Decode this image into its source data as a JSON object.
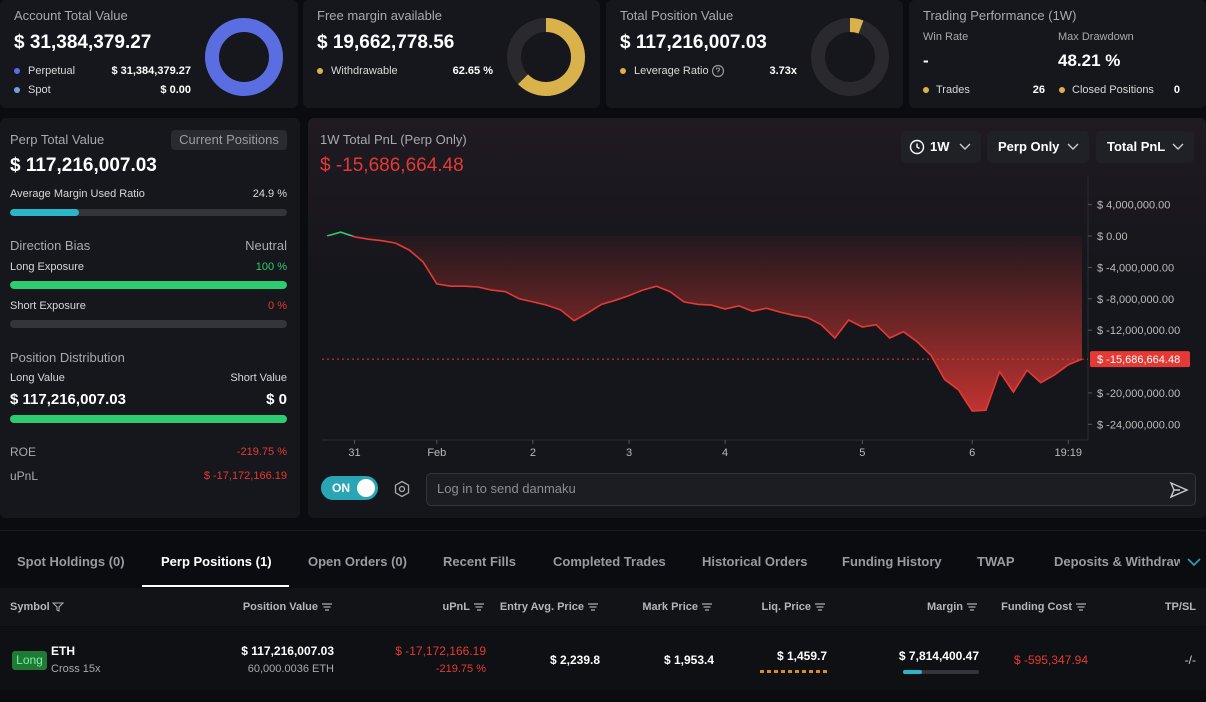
{
  "summary_cards": [
    {
      "title": "Account Total Value",
      "amount": "$ 31,384,379.27",
      "rows": [
        {
          "label": "Perpetual",
          "value": "$ 31,384,379.27",
          "color": "#5b6ee1"
        },
        {
          "label": "Spot",
          "value": "$ 0.00",
          "color": "#6fa3d8"
        }
      ],
      "donut": [
        31384379.27,
        0
      ]
    },
    {
      "title": "Free margin available",
      "amount": "$ 19,662,778.56",
      "rows": [
        {
          "label": "Withdrawable",
          "value": "62.65 %",
          "color": "#d9b24c"
        }
      ],
      "donut_percent": 62.65
    },
    {
      "title": "Total Position Value",
      "amount": "$ 117,216,007.03",
      "rows": [
        {
          "label": "Leverage Ratio",
          "value": "3.73x",
          "color": "#d9b24c"
        }
      ]
    }
  ],
  "performance": {
    "title": "Trading Performance (1W)",
    "stats": [
      {
        "label": "Win Rate",
        "value": "-"
      },
      {
        "label": "Max Drawdown",
        "value": "48.21 %"
      }
    ],
    "counts": [
      {
        "label": "Trades",
        "value": "26"
      },
      {
        "label": "Closed Positions",
        "value": "0"
      }
    ]
  },
  "perp_panel": {
    "title": "Perp Total Value",
    "tag": "Current Positions",
    "amount": "$ 117,216,007.03",
    "margin_ratio": {
      "label": "Average Margin Used Ratio",
      "value": 24.9,
      "value_label": "24.9 %"
    },
    "direction": {
      "title": "Direction Bias",
      "value": "Neutral",
      "long": {
        "label": "Long Exposure",
        "value": 100,
        "value_label": "100 %"
      },
      "short": {
        "label": "Short Exposure",
        "value": 0,
        "value_label": "0 %"
      }
    },
    "distribution": {
      "title": "Position Distribution",
      "long_label": "Long Value",
      "short_label": "Short Value",
      "long_value": "$ 117,216,007.03",
      "short_value": "$ 0"
    },
    "roe": {
      "label": "ROE",
      "value": "-219.75 %"
    },
    "upnl": {
      "label": "uPnL",
      "value": "$ -17,172,166.19"
    }
  },
  "controls": {
    "range": "1W",
    "scope": "Perp Only",
    "metric": "Total PnL",
    "toggle": "ON",
    "input_placeholder": "Log in to send danmaku"
  },
  "chart_data": {
    "type": "line",
    "title": "1W Total PnL (Perp Only)",
    "values": [
      0,
      500000,
      -100000,
      -400000,
      -600000,
      -900000,
      -1800000,
      -3300000,
      -6100000,
      -6400000,
      -6400000,
      -6500000,
      -6900000,
      -7100000,
      -8000000,
      -8400000,
      -8800000,
      -9400000,
      -10800000,
      -9800000,
      -8700000,
      -8200000,
      -7600000,
      -6900000,
      -6400000,
      -7100000,
      -8400000,
      -8700000,
      -8800000,
      -9300000,
      -8900000,
      -9600000,
      -9200000,
      -9700000,
      -10100000,
      -10400000,
      -11300000,
      -13000000,
      -10700000,
      -11600000,
      -11300000,
      -13000000,
      -12200000,
      -13500000,
      -15200000,
      -18300000,
      -19600000,
      -22300000,
      -22200000,
      -17300000,
      -19900000,
      -17100000,
      -18700000,
      -17700000,
      -16400000,
      -15686664.48
    ],
    "current": {
      "value": -15686664.48,
      "label": "$ -15,686,664.48"
    },
    "color": "#e53935",
    "up_color": "#2ecc71",
    "xlim": [
      0,
      55
    ],
    "xticks": [
      {
        "value": 2,
        "label": "31"
      },
      {
        "value": 8,
        "label": "Feb"
      },
      {
        "value": 15,
        "label": "2"
      },
      {
        "value": 22,
        "label": "3"
      },
      {
        "value": 29,
        "label": "4"
      },
      {
        "value": 39,
        "label": "5"
      },
      {
        "value": 47,
        "label": "6"
      },
      {
        "value": 54,
        "label": "19:19"
      }
    ],
    "ylim": [
      -26000000,
      6400000
    ],
    "yticks": [
      {
        "value": 4000000,
        "label": "$ 4,000,000.00"
      },
      {
        "value": 0,
        "label": "$ 0.00"
      },
      {
        "value": -4000000,
        "label": "$ -4,000,000.00"
      },
      {
        "value": -8000000,
        "label": "$ -8,000,000.00"
      },
      {
        "value": -12000000,
        "label": "$ -12,000,000.00"
      },
      {
        "value": -20000000,
        "label": "$ -20,000,000.00"
      },
      {
        "value": -24000000,
        "label": "$ -24,000,000.00"
      }
    ]
  },
  "tabs": {
    "items": [
      "Spot Holdings (0)",
      "Perp Positions (1)",
      "Open Orders (0)",
      "Recent Fills",
      "Completed Trades",
      "Historical Orders",
      "Funding History",
      "TWAP",
      "Deposits & Withdraw"
    ],
    "active": 1
  },
  "table": {
    "headers": [
      "Symbol",
      "Position Value",
      "uPnL",
      "Entry Avg. Price",
      "Mark Price",
      "Liq. Price",
      "Margin",
      "Funding Cost",
      "TP/SL"
    ],
    "rows": [
      {
        "side": "Long",
        "symbol": "ETH",
        "margin_mode": "Cross 15x",
        "position_value": "$ 117,216,007.03",
        "size": "60,000.0036 ETH",
        "upnl": "$ -17,172,166.19",
        "upnl_pct": "-219.75 %",
        "entry": "$ 2,239.8",
        "mark": "$ 1,953.4",
        "liq": "$ 1,459.7",
        "margin": "$ 7,814,400.47",
        "funding": "$ -595,347.94",
        "tpsl": "-/-"
      }
    ]
  }
}
